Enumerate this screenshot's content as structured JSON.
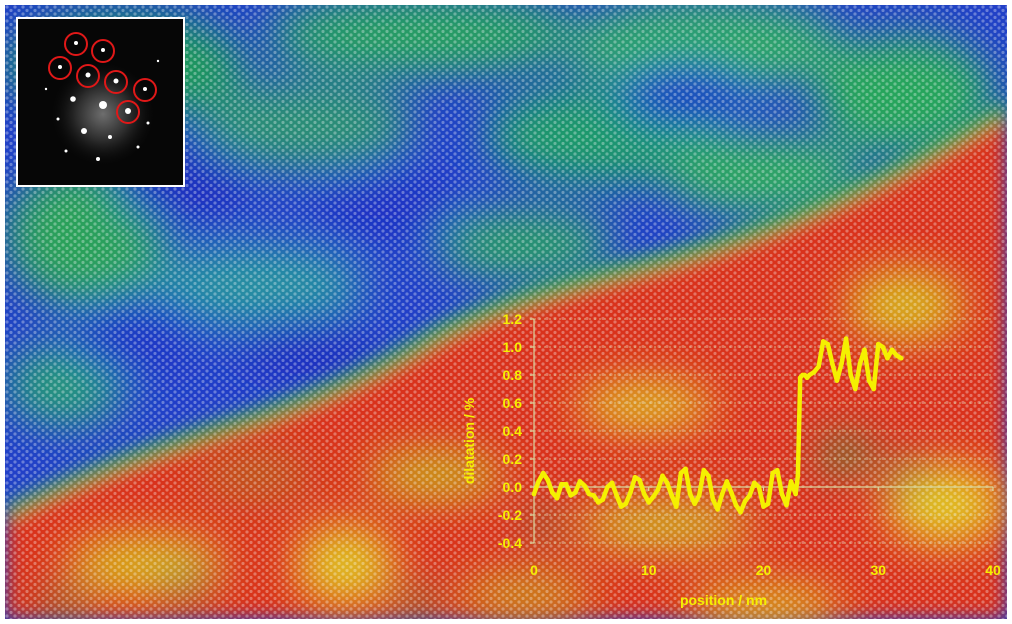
{
  "colors": {
    "strain_low": "#2a3fd6",
    "strain_mid": "#1fa64a",
    "strain_high": "#e0321e",
    "strain_peak": "#e8c21a",
    "inset_border": "#ffffff",
    "spot_circle": "#e01818",
    "axis": "#d9d9a0",
    "curve": "#f5f000",
    "label": "#f5f000"
  },
  "image": {
    "main_map": "false-colour strain map over atomic lattice",
    "inset": "diffraction pattern with circled spots"
  },
  "chart_data": {
    "type": "line",
    "title": "",
    "xlabel": "position / nm",
    "ylabel": "dilatation / %",
    "xlim": [
      0,
      40
    ],
    "ylim": [
      -0.4,
      1.2
    ],
    "xticks": [
      0,
      10,
      20,
      30,
      40
    ],
    "xtick_labels": [
      "0",
      "10",
      "20",
      "30",
      "40"
    ],
    "yticks": [
      1.2,
      1.0,
      0.8,
      0.6,
      0.4,
      0.2,
      0.0,
      -0.2,
      -0.4
    ],
    "ytick_labels": [
      "1.2",
      "1.0",
      "0.8",
      "0.6",
      "0.4",
      "0.2",
      "0.0",
      "-0.2",
      "-0.4"
    ],
    "grid": "horizontal dotted",
    "series": [
      {
        "values_x": [
          0,
          0.4,
          0.8,
          1.2,
          1.6,
          2.0,
          2.4,
          2.8,
          3.2,
          3.6,
          4.0,
          4.4,
          4.8,
          5.2,
          5.6,
          6.0,
          6.4,
          6.8,
          7.2,
          7.6,
          8.0,
          8.4,
          8.8,
          9.2,
          9.6,
          10.0,
          10.4,
          10.8,
          11.2,
          11.6,
          12.0,
          12.4,
          12.8,
          13.2,
          13.6,
          14.0,
          14.4,
          14.8,
          15.2,
          15.6,
          16.0,
          16.4,
          16.8,
          17.2,
          17.6,
          18.0,
          18.4,
          18.8,
          19.2,
          19.6,
          20.0,
          20.4,
          20.8,
          21.2,
          21.6,
          22.0,
          22.4,
          22.8,
          23.0,
          23.2,
          23.4,
          23.6,
          23.8,
          24.0,
          24.4,
          24.8,
          25.2,
          25.6,
          26.0,
          26.4,
          26.8,
          27.2,
          27.6,
          28.0,
          28.4,
          28.8,
          29.2,
          29.6,
          30.0,
          30.4,
          30.8,
          31.2,
          31.6,
          32.0
        ],
        "values_y": [
          -0.05,
          0.04,
          0.1,
          0.05,
          -0.04,
          -0.08,
          0.02,
          0.02,
          -0.06,
          -0.04,
          0.04,
          0.01,
          -0.05,
          -0.06,
          -0.11,
          -0.09,
          0.0,
          0.03,
          -0.06,
          -0.14,
          -0.12,
          -0.04,
          0.07,
          0.05,
          -0.05,
          -0.11,
          -0.07,
          -0.02,
          0.08,
          0.03,
          -0.06,
          -0.14,
          0.1,
          0.13,
          -0.05,
          -0.12,
          -0.06,
          0.12,
          0.08,
          -0.09,
          -0.16,
          -0.05,
          0.04,
          -0.04,
          -0.13,
          -0.18,
          -0.1,
          -0.06,
          0.03,
          0.0,
          -0.14,
          -0.12,
          0.1,
          0.12,
          -0.05,
          -0.13,
          0.04,
          -0.05,
          0.08,
          0.78,
          0.8,
          0.8,
          0.78,
          0.8,
          0.82,
          0.86,
          1.04,
          1.02,
          0.88,
          0.76,
          0.88,
          1.06,
          0.8,
          0.7,
          0.88,
          0.98,
          0.76,
          0.7,
          1.02,
          1.0,
          0.92,
          0.98,
          0.94,
          0.92
        ]
      }
    ]
  }
}
